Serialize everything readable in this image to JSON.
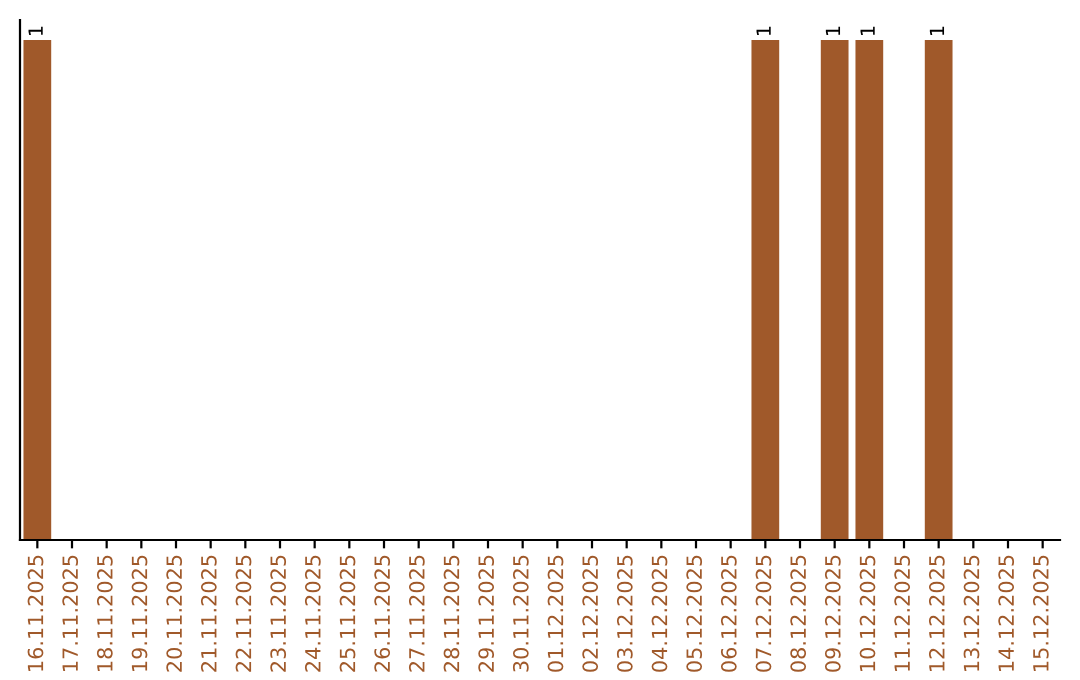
{
  "chart_data": {
    "type": "bar",
    "categories": [
      "16.11.2025",
      "17.11.2025",
      "18.11.2025",
      "19.11.2025",
      "20.11.2025",
      "21.11.2025",
      "22.11.2025",
      "23.11.2025",
      "24.11.2025",
      "25.11.2025",
      "26.11.2025",
      "27.11.2025",
      "28.11.2025",
      "29.11.2025",
      "30.11.2025",
      "01.12.2025",
      "02.12.2025",
      "03.12.2025",
      "04.12.2025",
      "05.12.2025",
      "06.12.2025",
      "07.12.2025",
      "08.12.2025",
      "09.12.2025",
      "10.12.2025",
      "11.12.2025",
      "12.12.2025",
      "13.12.2025",
      "14.12.2025",
      "15.12.2025"
    ],
    "values": [
      1,
      0,
      0,
      0,
      0,
      0,
      0,
      0,
      0,
      0,
      0,
      0,
      0,
      0,
      0,
      0,
      0,
      0,
      0,
      0,
      0,
      1,
      0,
      1,
      1,
      0,
      1,
      0,
      0,
      0
    ],
    "value_labels": [
      "1",
      null,
      null,
      null,
      null,
      null,
      null,
      null,
      null,
      null,
      null,
      null,
      null,
      null,
      null,
      null,
      null,
      null,
      null,
      null,
      null,
      "1",
      null,
      "1",
      "1",
      null,
      "1",
      null,
      null,
      null
    ],
    "color": "#a0592a",
    "grid": false,
    "legend": false
  }
}
